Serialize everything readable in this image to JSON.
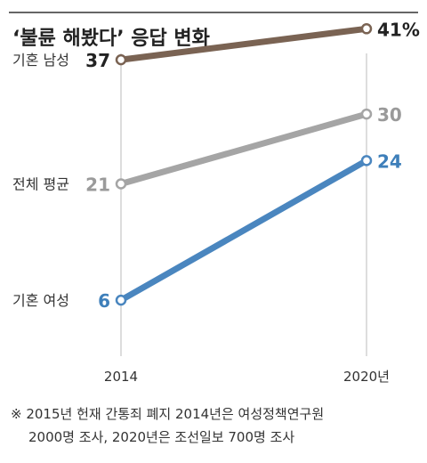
{
  "title": "‘불륜 해봤다’ 응답 변화",
  "note": {
    "line1": "※ 2015년 헌재 간통죄 폐지 2014년은 여성정책연구원",
    "line2": "2000명 조사, 2020년은 조선일보 700명 조사"
  },
  "chart_data": {
    "type": "line",
    "title": "‘불륜 해봤다’ 응답 변화",
    "x_ticks": [
      "2014",
      "2020년"
    ],
    "x": [
      2014,
      2020
    ],
    "ylim": [
      0,
      45
    ],
    "grid": false,
    "series": [
      {
        "name": "기혼 남성",
        "values": [
          37,
          41
        ],
        "labels": [
          "37",
          "41%"
        ],
        "color": "#7a6353",
        "label_color": "#222222"
      },
      {
        "name": "전체 평균",
        "values": [
          21,
          30
        ],
        "labels": [
          "21",
          "30"
        ],
        "color": "#a5a5a5",
        "label_color": "#9a9a9a"
      },
      {
        "name": "기혼 여성",
        "values": [
          6,
          24
        ],
        "labels": [
          "6",
          "24"
        ],
        "color": "#4a86bf",
        "label_color": "#3e7fba"
      }
    ]
  }
}
